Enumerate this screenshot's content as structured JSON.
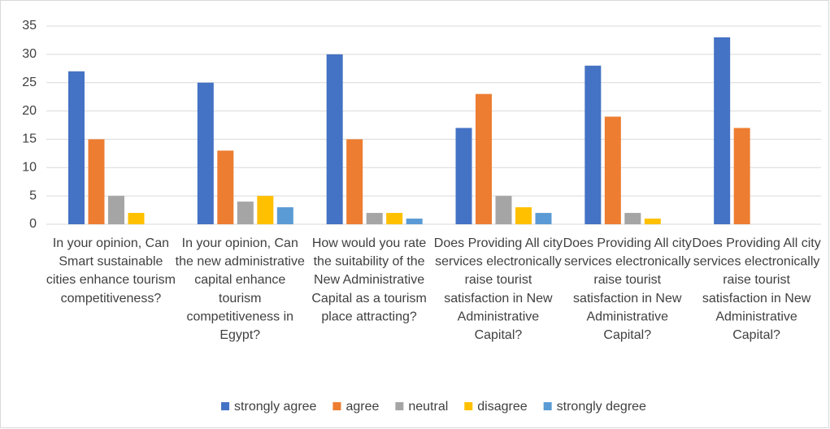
{
  "chart_data": {
    "type": "bar",
    "categories": [
      "In your opinion, Can Smart sustainable cities enhance tourism competitiveness?",
      "In your opinion, Can the new administrative capital enhance tourism competitiveness in Egypt?",
      "How would you rate the suitability of the New Administrative Capital as a tourism place attracting?",
      "Does Providing All city services electronically raise tourist satisfaction in New Administrative Capital?",
      "Does Providing All city services electronically raise tourist satisfaction in New Administrative Capital?",
      "Does Providing All city services electronically raise tourist satisfaction in New Administrative Capital?"
    ],
    "series": [
      {
        "name": "strongly agree",
        "color": "#4472c4",
        "values": [
          27,
          25,
          30,
          17,
          28,
          33
        ]
      },
      {
        "name": "agree",
        "color": "#ed7d31",
        "values": [
          15,
          13,
          15,
          23,
          19,
          17
        ]
      },
      {
        "name": "neutral",
        "color": "#a5a5a5",
        "values": [
          5,
          4,
          2,
          5,
          2,
          0
        ]
      },
      {
        "name": "disagree",
        "color": "#ffc000",
        "values": [
          2,
          5,
          2,
          3,
          1,
          0
        ]
      },
      {
        "name": "strongly degree",
        "color": "#5b9bd5",
        "values": [
          0,
          3,
          1,
          2,
          0,
          0
        ]
      }
    ],
    "ylim": [
      0,
      35
    ],
    "yticks": [
      0,
      5,
      10,
      15,
      20,
      25,
      30,
      35
    ],
    "grid": true,
    "legend": "bottom"
  }
}
